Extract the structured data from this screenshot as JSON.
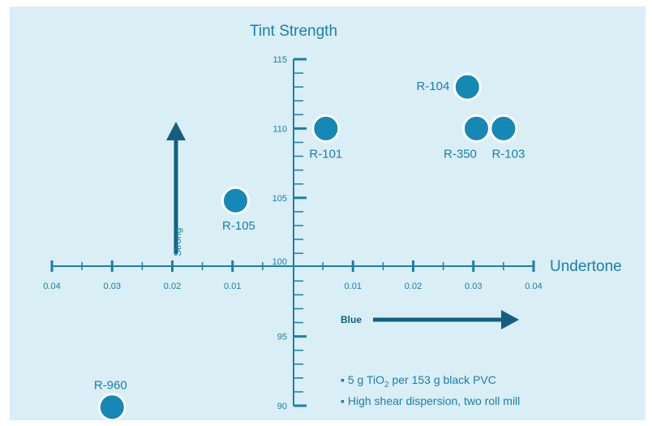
{
  "colors": {
    "background": "#d9eef5",
    "axis": "#1b7fa8",
    "marker": "#1688b5",
    "marker_stroke": "#ffffff",
    "arrow": "#145e80",
    "label": "#1b7fa8"
  },
  "chart_data": {
    "type": "scatter",
    "title": "Tint Strength",
    "xlabel": "Undertone",
    "ylabel": "Tint Strength",
    "xlim": [
      -0.04,
      0.04
    ],
    "ylim": [
      90,
      115
    ],
    "x_ticks": [
      -0.04,
      -0.03,
      -0.02,
      -0.01,
      0.01,
      0.02,
      0.03,
      0.04
    ],
    "x_tick_labels": [
      "0.04",
      "0.03",
      "0.02",
      "0.01",
      "0.01",
      "0.02",
      "0.03",
      "0.04"
    ],
    "y_ticks": [
      90,
      95,
      100,
      105,
      110,
      115
    ],
    "y_tick_labels": [
      "90",
      "95",
      "100",
      "105",
      "110",
      "115"
    ],
    "grid": false,
    "points": [
      {
        "label": "R-104",
        "x": 0.029,
        "y": 113
      },
      {
        "label": "R-101",
        "x": 0.0055,
        "y": 110
      },
      {
        "label": "R-350",
        "x": 0.0305,
        "y": 110
      },
      {
        "label": "R-103",
        "x": 0.035,
        "y": 110
      },
      {
        "label": "R-105",
        "x": -0.0095,
        "y": 104.8
      },
      {
        "label": "R-960",
        "x": -0.03,
        "y": 89.9
      }
    ],
    "annotations": {
      "strong": "Strong",
      "blue": "Blue"
    }
  },
  "notes": {
    "line1_prefix": "5 g TiO",
    "line1_sub": "2",
    "line1_suffix": " per 153 g black PVC",
    "line2": "High shear dispersion, two roll mill"
  }
}
